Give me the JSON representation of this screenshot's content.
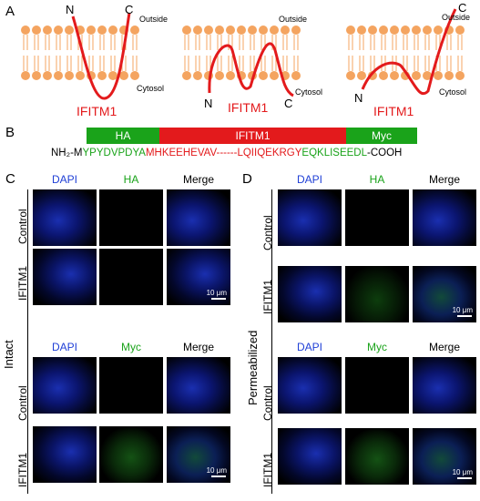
{
  "panel_a": {
    "letter": "A",
    "diagrams": [
      {
        "n": "N",
        "c": "C",
        "outside": "Outside",
        "cytosol": "Cytosol",
        "label": "IFITM1"
      },
      {
        "n": "N",
        "c": "C",
        "outside": "Outside",
        "cytosol": "Cytosol",
        "label": "IFITM1"
      },
      {
        "n": "N",
        "c": "C",
        "outside": "Outside",
        "cytosol": "Cytosol",
        "label": "IFITM1"
      }
    ]
  },
  "panel_b": {
    "letter": "B",
    "boxes": {
      "ha": "HA",
      "ifitm1": "IFITM1",
      "myc": "Myc"
    },
    "sequence": {
      "nh2": "NH₂-",
      "m": "M",
      "ha_seq": "YPYDVPDYA",
      "ifitm_seq": "MHKEEHEVAV------LQIIQEKRGY",
      "myc_seq": "EQKLISEEDL",
      "cooh": "-COOH"
    }
  },
  "panel_c": {
    "letter": "C",
    "group_label": "Intact",
    "blocks": [
      {
        "headers": [
          "DAPI",
          "HA",
          "Merge"
        ],
        "rows": [
          "Control",
          "IFITM1"
        ],
        "scale": "10 μm"
      },
      {
        "headers": [
          "DAPI",
          "Myc",
          "Merge"
        ],
        "rows": [
          "Control",
          "IFITM1"
        ],
        "scale": "10 μm"
      }
    ]
  },
  "panel_d": {
    "letter": "D",
    "group_label": "Permeabilized",
    "blocks": [
      {
        "headers": [
          "DAPI",
          "HA",
          "Merge"
        ],
        "rows": [
          "Control",
          "IFITM1"
        ],
        "scale": "10 μm"
      },
      {
        "headers": [
          "DAPI",
          "Myc",
          "Merge"
        ],
        "rows": [
          "Control",
          "IFITM1"
        ],
        "scale": "10 μm"
      }
    ]
  },
  "colors": {
    "red": "#e31a1c",
    "green": "#1aa31a",
    "blue": "#1f3fd6",
    "lipid": "#f4a460"
  }
}
